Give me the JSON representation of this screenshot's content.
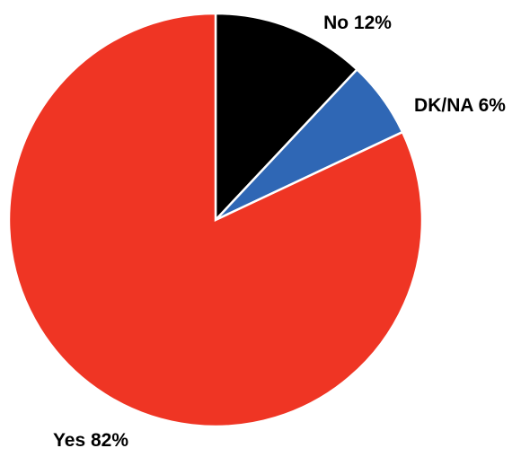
{
  "chart_data": {
    "type": "pie",
    "slices": [
      {
        "label": "No",
        "value": 12,
        "display": "No 12%",
        "color": "#000000"
      },
      {
        "label": "DK/NA",
        "value": 6,
        "display": "DK/NA 6%",
        "color": "#2f67b5"
      },
      {
        "label": "Yes",
        "value": 82,
        "display": "Yes 82%",
        "color": "#ef3524"
      }
    ],
    "start": "top",
    "direction": "clockwise",
    "slice_border_color": "#ffffff",
    "legend": "none"
  }
}
